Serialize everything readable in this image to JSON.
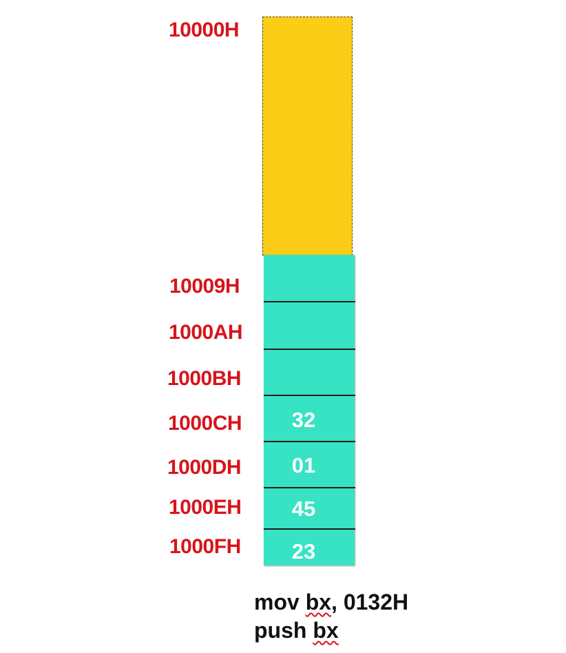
{
  "reserved_region": {
    "address": "10000H",
    "color": "#fccd16"
  },
  "stack": {
    "color": "#38e2c5",
    "address_color": "#d7141b",
    "cells": [
      {
        "address": "10009H",
        "value": ""
      },
      {
        "address": "1000AH",
        "value": ""
      },
      {
        "address": "1000BH",
        "value": ""
      },
      {
        "address": "1000CH",
        "value": "32"
      },
      {
        "address": "1000DH",
        "value": "01"
      },
      {
        "address": "1000EH",
        "value": "45"
      },
      {
        "address": "1000FH",
        "value": "23"
      }
    ]
  },
  "code": {
    "line1": {
      "mnemonic": "mov",
      "operand_reg": "bx",
      "operand_rest": ", 0132H"
    },
    "line2": {
      "mnemonic": "push",
      "operand_reg": "bx"
    }
  }
}
